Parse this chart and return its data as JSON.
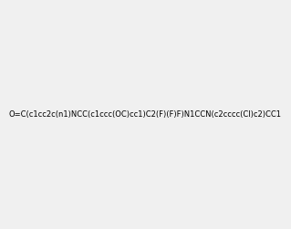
{
  "smiles": "O=C(c1cc2c(n1)NCC(c1ccc(OC)cc1)C2(F)(F)F)N1CCN(c2cccc(Cl)c2)CC1",
  "title": "",
  "bg_color": "#f0f0f0",
  "img_size": [
    300,
    300
  ],
  "atom_colors": {
    "N": "#0000FF",
    "O": "#FF0000",
    "F": "#FF00FF",
    "Cl": "#00CC00",
    "C": "#000000",
    "H": "#000000"
  }
}
